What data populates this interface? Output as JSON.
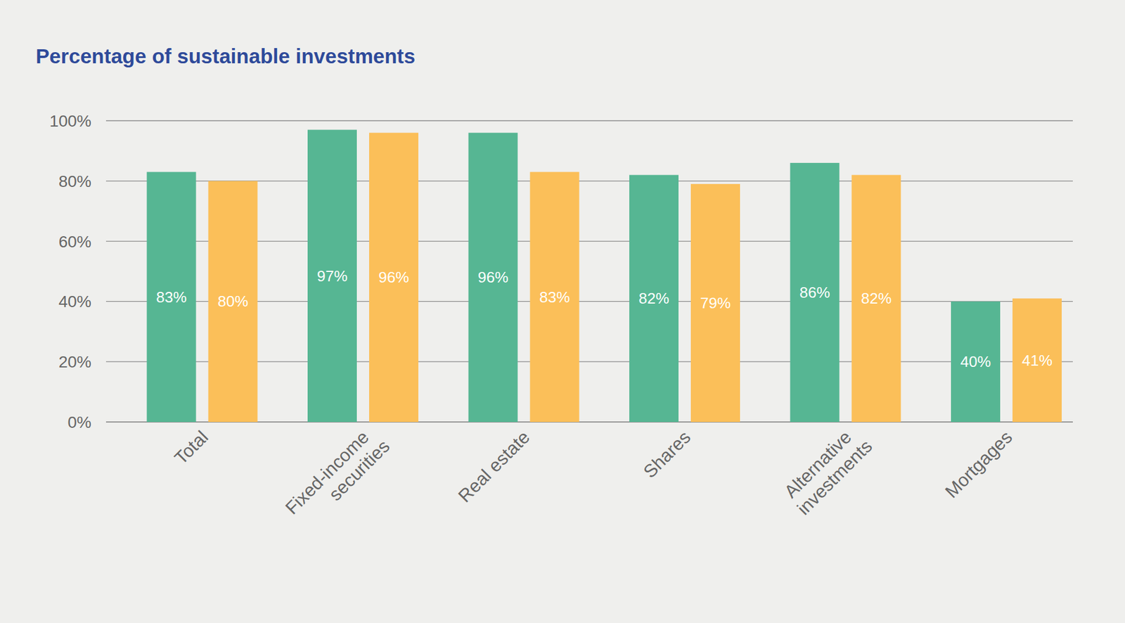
{
  "chart_data": {
    "type": "bar",
    "title": "Percentage of sustainable investments",
    "categories": [
      "Total",
      "Fixed-income\nsecurities",
      "Real estate",
      "Shares",
      "Alternative\ninvestments",
      "Mortgages"
    ],
    "series": [
      {
        "color": "#56b693",
        "values": [
          83,
          97,
          96,
          82,
          86,
          40
        ],
        "value_labels": [
          "83%",
          "97%",
          "96%",
          "82%",
          "86%",
          "40%"
        ]
      },
      {
        "color": "#fbbf59",
        "values": [
          80,
          96,
          83,
          79,
          82,
          41
        ],
        "value_labels": [
          "80%",
          "96%",
          "83%",
          "79%",
          "82%",
          "41%"
        ]
      }
    ],
    "ylim": [
      0,
      100
    ],
    "yticks": [
      {
        "value": 0,
        "label": "0%"
      },
      {
        "value": 20,
        "label": "20%"
      },
      {
        "value": 40,
        "label": "40%"
      },
      {
        "value": 60,
        "label": "60%"
      },
      {
        "value": 80,
        "label": "80%"
      },
      {
        "value": 100,
        "label": "100%"
      }
    ],
    "grid": true,
    "data_labels": true
  }
}
